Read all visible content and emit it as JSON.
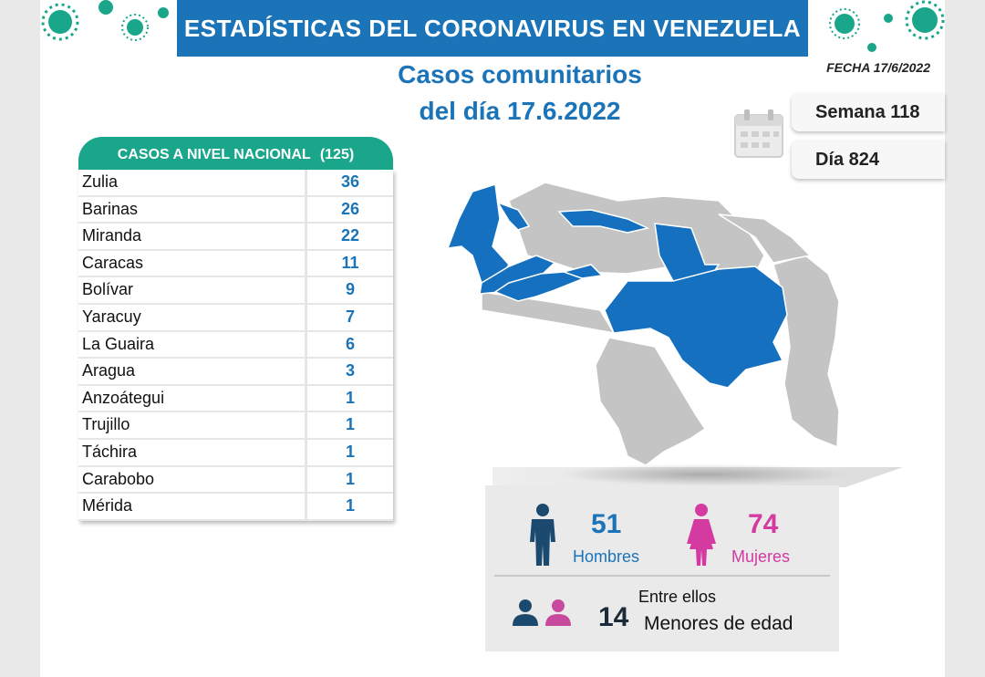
{
  "header": {
    "title": "ESTADÍSTICAS DEL CORONAVIRUS EN VENEZUELA"
  },
  "subtitle": {
    "line1": "Casos comunitarios",
    "line2": "del día 17.6.2022"
  },
  "fecha": "FECHA 17/6/2022",
  "semana": "Semana 118",
  "dia": "Día 824",
  "table": {
    "header_label": "CASOS A NIVEL NACIONAL",
    "total": "(125)",
    "rows": [
      {
        "state": "Zulia",
        "cases": "36"
      },
      {
        "state": "Barinas",
        "cases": "26"
      },
      {
        "state": "Miranda",
        "cases": "22"
      },
      {
        "state": "Caracas",
        "cases": "11"
      },
      {
        "state": "Bolívar",
        "cases": "9"
      },
      {
        "state": "Yaracuy",
        "cases": "7"
      },
      {
        "state": "La Guaira",
        "cases": "6"
      },
      {
        "state": "Aragua",
        "cases": "3"
      },
      {
        "state": "Anzoátegui",
        "cases": "1"
      },
      {
        "state": "Trujillo",
        "cases": "1"
      },
      {
        "state": "Táchira",
        "cases": "1"
      },
      {
        "state": "Carabobo",
        "cases": "1"
      },
      {
        "state": "Mérida",
        "cases": "1"
      }
    ]
  },
  "stats": {
    "men_count": "51",
    "men_label": "Hombres",
    "women_count": "74",
    "women_label": "Mujeres",
    "minors_intro": "Entre ellos",
    "minors_count": "14",
    "minors_label": "Menores de edad"
  },
  "colors": {
    "blue": "#1b73b8",
    "green": "#1aa68a",
    "pink": "#d43aa0",
    "navy": "#1c4a6e",
    "map_gray": "#c4c4c4",
    "map_blue": "#1570bf"
  }
}
